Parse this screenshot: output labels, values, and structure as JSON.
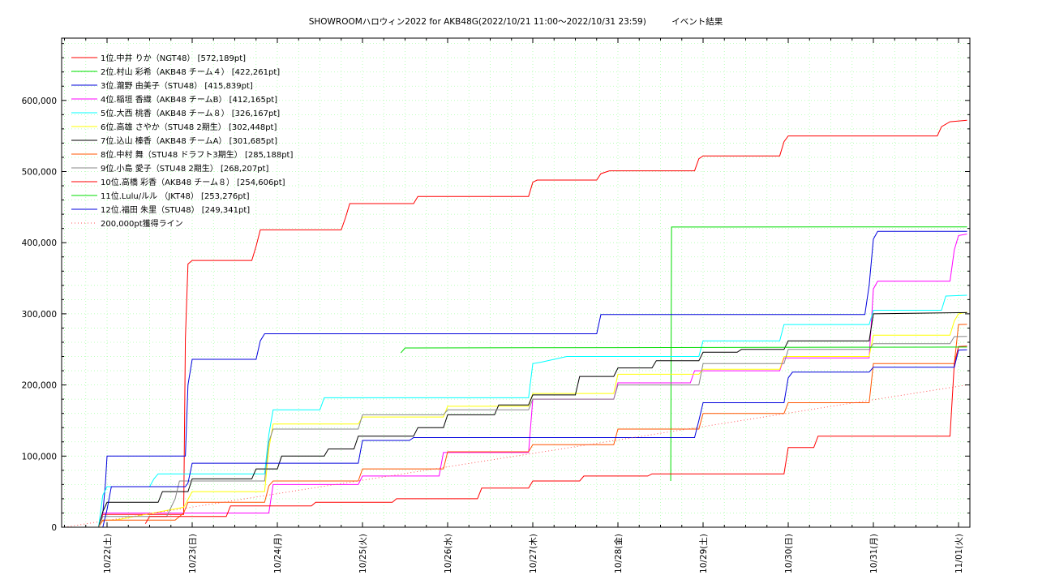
{
  "chart_data": {
    "type": "line",
    "title": "SHOWROOMハロウィン2022 for AKB48G(2022/10/21 11:00～2022/10/31 23:59)　　　イベント結果",
    "xlabel": "",
    "ylabel": "",
    "x_tick_labels": [
      "10/22(土)",
      "10/23(日)",
      "10/24(月)",
      "10/25(火)",
      "10/26(水)",
      "10/27(木)",
      "10/28(金)",
      "10/29(土)",
      "10/30(日)",
      "10/31(月)",
      "11/01(火)"
    ],
    "x_range_days": [
      -0.5,
      10.13
    ],
    "y_tick_labels": [
      "0",
      "100,000",
      "200,000",
      "300,000",
      "400,000",
      "500,000",
      "600,000"
    ],
    "ylim": [
      0,
      685000
    ],
    "grid": true,
    "legend_position": "top-left",
    "series": [
      {
        "name": "1位.中井 りか（NGT48） [572,189pt]",
        "color": "#ff0000",
        "points": [
          [
            -0.1,
            0
          ],
          [
            -0.05,
            18000
          ],
          [
            0.9,
            18000
          ],
          [
            0.92,
            265000
          ],
          [
            0.95,
            370000
          ],
          [
            1.0,
            375000
          ],
          [
            1.7,
            375000
          ],
          [
            1.75,
            395000
          ],
          [
            1.8,
            418000
          ],
          [
            2.75,
            418000
          ],
          [
            2.8,
            435000
          ],
          [
            2.85,
            455000
          ],
          [
            3.6,
            455000
          ],
          [
            3.65,
            465000
          ],
          [
            4.95,
            465000
          ],
          [
            5.0,
            485000
          ],
          [
            5.05,
            488000
          ],
          [
            5.75,
            488000
          ],
          [
            5.8,
            497000
          ],
          [
            5.9,
            501000
          ],
          [
            6.9,
            501000
          ],
          [
            6.95,
            518000
          ],
          [
            7.0,
            522000
          ],
          [
            7.9,
            522000
          ],
          [
            7.95,
            542000
          ],
          [
            8.0,
            550000
          ],
          [
            9.75,
            550000
          ],
          [
            9.8,
            563000
          ],
          [
            9.9,
            570000
          ],
          [
            10.1,
            572189
          ]
        ]
      },
      {
        "name": "2位.村山 彩希（AKB48 チーム４） [422,261pt]",
        "color": "#00dd00",
        "points": [
          [
            6.62,
            65000
          ],
          [
            6.63,
            422000
          ],
          [
            10.1,
            422261
          ]
        ]
      },
      {
        "name": "3位.瀧野 由美子（STU48） [415,839pt]",
        "color": "#0000dd",
        "points": [
          [
            -0.05,
            20000
          ],
          [
            -0.02,
            60000
          ],
          [
            0.0,
            100000
          ],
          [
            0.92,
            100000
          ],
          [
            0.95,
            200000
          ],
          [
            1.0,
            236000
          ],
          [
            1.75,
            236000
          ],
          [
            1.8,
            262000
          ],
          [
            1.85,
            272000
          ],
          [
            5.75,
            272000
          ],
          [
            5.8,
            299000
          ],
          [
            8.9,
            299000
          ],
          [
            8.95,
            340000
          ],
          [
            9.0,
            405000
          ],
          [
            9.05,
            416000
          ],
          [
            10.1,
            415839
          ]
        ]
      },
      {
        "name": "4位.稲垣 香織（AKB48 チームB） [412,165pt]",
        "color": "#ff00ff",
        "points": [
          [
            -0.1,
            0
          ],
          [
            -0.05,
            20000
          ],
          [
            1.9,
            20000
          ],
          [
            1.95,
            60000
          ],
          [
            2.95,
            60000
          ],
          [
            3.0,
            72000
          ],
          [
            3.9,
            72000
          ],
          [
            3.95,
            105000
          ],
          [
            4.95,
            105000
          ],
          [
            5.0,
            180000
          ],
          [
            5.95,
            180000
          ],
          [
            6.0,
            203000
          ],
          [
            6.85,
            203000
          ],
          [
            6.9,
            220000
          ],
          [
            7.9,
            220000
          ],
          [
            7.95,
            238000
          ],
          [
            8.95,
            238000
          ],
          [
            9.0,
            335000
          ],
          [
            9.05,
            346000
          ],
          [
            9.9,
            346000
          ],
          [
            9.95,
            390000
          ],
          [
            10.0,
            410000
          ],
          [
            10.1,
            412165
          ]
        ]
      },
      {
        "name": "5位.大西 桃香（AKB48 チーム８） [326,167pt]",
        "color": "#00ffff",
        "points": [
          [
            -0.1,
            0
          ],
          [
            -0.05,
            45000
          ],
          [
            0.0,
            57000
          ],
          [
            0.5,
            57000
          ],
          [
            0.55,
            68000
          ],
          [
            0.6,
            75000
          ],
          [
            1.85,
            75000
          ],
          [
            1.9,
            130000
          ],
          [
            1.95,
            165000
          ],
          [
            2.5,
            165000
          ],
          [
            2.55,
            182000
          ],
          [
            3.9,
            182000
          ],
          [
            4.95,
            182000
          ],
          [
            5.0,
            230000
          ],
          [
            5.1,
            232000
          ],
          [
            5.4,
            240000
          ],
          [
            6.95,
            240000
          ],
          [
            7.0,
            262000
          ],
          [
            7.9,
            262000
          ],
          [
            7.95,
            285000
          ],
          [
            8.95,
            285000
          ],
          [
            9.0,
            305000
          ],
          [
            9.8,
            305000
          ],
          [
            9.85,
            325000
          ],
          [
            10.1,
            326167
          ]
        ]
      },
      {
        "name": "6位.高雄 さやか（STU48 2期生） [302,448pt]",
        "color": "#ffff00",
        "points": [
          [
            -0.1,
            0
          ],
          [
            -0.05,
            10000
          ],
          [
            0.1,
            10000
          ],
          [
            0.9,
            28000
          ],
          [
            1.0,
            50000
          ],
          [
            1.85,
            50000
          ],
          [
            1.9,
            110000
          ],
          [
            1.95,
            145000
          ],
          [
            2.95,
            145000
          ],
          [
            3.0,
            155000
          ],
          [
            3.95,
            155000
          ],
          [
            4.0,
            170000
          ],
          [
            4.95,
            170000
          ],
          [
            5.0,
            188000
          ],
          [
            5.95,
            188000
          ],
          [
            6.0,
            215000
          ],
          [
            6.95,
            215000
          ],
          [
            7.0,
            222000
          ],
          [
            7.9,
            222000
          ],
          [
            7.95,
            240000
          ],
          [
            8.95,
            240000
          ],
          [
            9.0,
            270000
          ],
          [
            9.9,
            270000
          ],
          [
            9.95,
            290000
          ],
          [
            10.0,
            300000
          ],
          [
            10.1,
            302448
          ]
        ]
      },
      {
        "name": "7位.込山 榛香（AKB48 チームA） [301,685pt]",
        "color": "#000000",
        "points": [
          [
            -0.1,
            0
          ],
          [
            -0.05,
            22000
          ],
          [
            0.0,
            35000
          ],
          [
            0.6,
            35000
          ],
          [
            0.65,
            50000
          ],
          [
            0.95,
            50000
          ],
          [
            1.0,
            68000
          ],
          [
            1.7,
            68000
          ],
          [
            1.75,
            82000
          ],
          [
            2.0,
            82000
          ],
          [
            2.05,
            100000
          ],
          [
            2.55,
            100000
          ],
          [
            2.6,
            110000
          ],
          [
            2.9,
            110000
          ],
          [
            2.95,
            128000
          ],
          [
            3.6,
            128000
          ],
          [
            3.65,
            140000
          ],
          [
            3.95,
            140000
          ],
          [
            4.0,
            158000
          ],
          [
            4.55,
            158000
          ],
          [
            4.6,
            172000
          ],
          [
            4.95,
            172000
          ],
          [
            5.0,
            186000
          ],
          [
            5.5,
            186000
          ],
          [
            5.55,
            212000
          ],
          [
            5.95,
            212000
          ],
          [
            6.0,
            224000
          ],
          [
            6.4,
            224000
          ],
          [
            6.45,
            234000
          ],
          [
            6.95,
            234000
          ],
          [
            7.0,
            246000
          ],
          [
            7.4,
            246000
          ],
          [
            7.45,
            250000
          ],
          [
            7.95,
            250000
          ],
          [
            8.0,
            262000
          ],
          [
            8.95,
            262000
          ],
          [
            9.0,
            300000
          ],
          [
            10.1,
            301685
          ]
        ]
      },
      {
        "name": "8位.中村 舞（STU48 ドラフト3期生） [285,188pt]",
        "color": "#ff5500",
        "points": [
          [
            -0.1,
            0
          ],
          [
            -0.05,
            10000
          ],
          [
            0.8,
            10000
          ],
          [
            0.9,
            20000
          ],
          [
            0.95,
            35000
          ],
          [
            1.85,
            35000
          ],
          [
            1.9,
            58000
          ],
          [
            1.95,
            65000
          ],
          [
            2.95,
            65000
          ],
          [
            3.0,
            82000
          ],
          [
            3.95,
            82000
          ],
          [
            4.0,
            106000
          ],
          [
            4.95,
            106000
          ],
          [
            5.0,
            116000
          ],
          [
            5.95,
            116000
          ],
          [
            6.0,
            138000
          ],
          [
            6.95,
            138000
          ],
          [
            7.0,
            160000
          ],
          [
            7.95,
            160000
          ],
          [
            8.0,
            175000
          ],
          [
            8.95,
            175000
          ],
          [
            9.0,
            230000
          ],
          [
            9.95,
            230000
          ],
          [
            10.0,
            285000
          ],
          [
            10.1,
            285188
          ]
        ]
      },
      {
        "name": "9位.小島 愛子（STU48 2期生） [268,207pt]",
        "color": "#888888",
        "points": [
          [
            -0.1,
            0
          ],
          [
            -0.05,
            15000
          ],
          [
            0.7,
            15000
          ],
          [
            0.8,
            40000
          ],
          [
            0.85,
            65000
          ],
          [
            1.85,
            65000
          ],
          [
            1.9,
            120000
          ],
          [
            1.95,
            138000
          ],
          [
            2.95,
            138000
          ],
          [
            3.0,
            158000
          ],
          [
            3.95,
            158000
          ],
          [
            4.0,
            165000
          ],
          [
            4.95,
            165000
          ],
          [
            5.0,
            180000
          ],
          [
            5.95,
            180000
          ],
          [
            6.0,
            200000
          ],
          [
            6.95,
            200000
          ],
          [
            7.0,
            230000
          ],
          [
            7.95,
            230000
          ],
          [
            8.0,
            250000
          ],
          [
            8.95,
            250000
          ],
          [
            9.0,
            258000
          ],
          [
            9.9,
            258000
          ],
          [
            9.95,
            268000
          ],
          [
            10.1,
            268207
          ]
        ]
      },
      {
        "name": "10位.高橋 彩香（AKB48 チーム８） [254,606pt]",
        "color": "#ff0000",
        "points": [
          [
            0.45,
            5000
          ],
          [
            0.5,
            15000
          ],
          [
            1.4,
            15000
          ],
          [
            1.45,
            30000
          ],
          [
            2.4,
            30000
          ],
          [
            2.45,
            35000
          ],
          [
            3.35,
            35000
          ],
          [
            3.4,
            40000
          ],
          [
            4.35,
            40000
          ],
          [
            4.4,
            55000
          ],
          [
            4.95,
            55000
          ],
          [
            5.0,
            65000
          ],
          [
            5.55,
            65000
          ],
          [
            5.6,
            72000
          ],
          [
            6.35,
            72000
          ],
          [
            6.4,
            75000
          ],
          [
            7.95,
            75000
          ],
          [
            8.0,
            112000
          ],
          [
            8.3,
            112000
          ],
          [
            8.35,
            128000
          ],
          [
            9.9,
            128000
          ],
          [
            9.95,
            230000
          ],
          [
            10.0,
            254000
          ],
          [
            10.1,
            254606
          ]
        ]
      },
      {
        "name": "11位.Lulu/ルル （JKT48） [253,276pt]",
        "color": "#00dd00",
        "points": [
          [
            3.45,
            245000
          ],
          [
            3.5,
            252000
          ],
          [
            10.1,
            253276
          ]
        ]
      },
      {
        "name": "12位.福田 朱里（STU48） [249,341pt]",
        "color": "#0000dd",
        "points": [
          [
            -0.05,
            0
          ],
          [
            0.0,
            25000
          ],
          [
            0.05,
            57000
          ],
          [
            0.92,
            57000
          ],
          [
            0.95,
            62000
          ],
          [
            1.0,
            90000
          ],
          [
            2.95,
            90000
          ],
          [
            3.0,
            122000
          ],
          [
            3.55,
            122000
          ],
          [
            3.6,
            126000
          ],
          [
            6.9,
            126000
          ],
          [
            6.95,
            150000
          ],
          [
            7.0,
            175000
          ],
          [
            7.95,
            175000
          ],
          [
            8.0,
            210000
          ],
          [
            8.05,
            218000
          ],
          [
            8.95,
            218000
          ],
          [
            9.0,
            225000
          ],
          [
            9.95,
            225000
          ],
          [
            10.0,
            249000
          ],
          [
            10.1,
            249341
          ]
        ]
      },
      {
        "name": "200,000pt獲得ライン",
        "color": "#ff5555",
        "dotted": true,
        "points": [
          [
            -0.5,
            0
          ],
          [
            10.1,
            200000
          ]
        ]
      }
    ]
  }
}
